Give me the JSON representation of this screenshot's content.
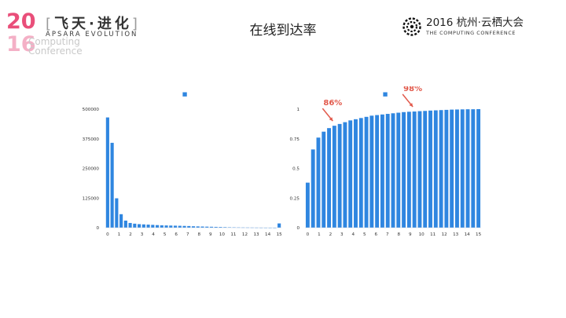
{
  "header": {
    "left_logo": {
      "year_top": "20",
      "year_bottom": "16",
      "title_cn": "飞天·进化",
      "subtitle": "APSARA EVOLUTION",
      "computing_line1": "Computing",
      "computing_line2": "Conference"
    },
    "page_title": "在线到达率",
    "right_logo": {
      "top": "2016 杭州·云栖大会",
      "bottom": "THE COMPUTING CONFERENCE"
    }
  },
  "colors": {
    "bar": "#2f86e0",
    "axis_text": "#333333",
    "annotation": "#e25a4c"
  },
  "chart_data": [
    {
      "type": "bar",
      "x_ticks": [
        "0",
        "1",
        "2",
        "3",
        "4",
        "5",
        "6",
        "7",
        "8",
        "9",
        "10",
        "11",
        "12",
        "13",
        "14",
        "15"
      ],
      "y_ticks": [
        "500000",
        "375000",
        "250000",
        "125000",
        "0"
      ],
      "ylim": [
        0,
        500000
      ],
      "values": [
        465000,
        358000,
        124000,
        57000,
        30000,
        20000,
        17000,
        15000,
        14000,
        13000,
        12000,
        11000,
        10000,
        9500,
        9000,
        8500,
        8000,
        7500,
        7000,
        6000,
        5500,
        5000,
        4500,
        4000,
        3500,
        3000,
        2500,
        2000,
        1800,
        1500,
        1200,
        1000,
        800,
        600,
        400,
        300,
        200,
        100,
        18000
      ],
      "legend": "■"
    },
    {
      "type": "bar",
      "x_ticks": [
        "0",
        "1",
        "2",
        "3",
        "4",
        "5",
        "6",
        "7",
        "8",
        "9",
        "10",
        "11",
        "12",
        "13",
        "14",
        "15"
      ],
      "y_ticks": [
        "1",
        "0.75",
        "0.5",
        "0.25",
        "0"
      ],
      "ylim": [
        0,
        1
      ],
      "values": [
        0.38,
        0.66,
        0.76,
        0.81,
        0.84,
        0.86,
        0.875,
        0.89,
        0.905,
        0.915,
        0.925,
        0.935,
        0.945,
        0.95,
        0.955,
        0.96,
        0.965,
        0.97,
        0.975,
        0.978,
        0.98,
        0.983,
        0.985,
        0.988,
        0.99,
        0.992,
        0.994,
        0.996,
        0.997,
        0.998,
        0.999,
        0.999,
        1.0
      ],
      "legend": "■",
      "annotations": [
        {
          "label": "86%",
          "bar_index": 5
        },
        {
          "label": "98%",
          "bar_index": 20
        }
      ]
    }
  ]
}
